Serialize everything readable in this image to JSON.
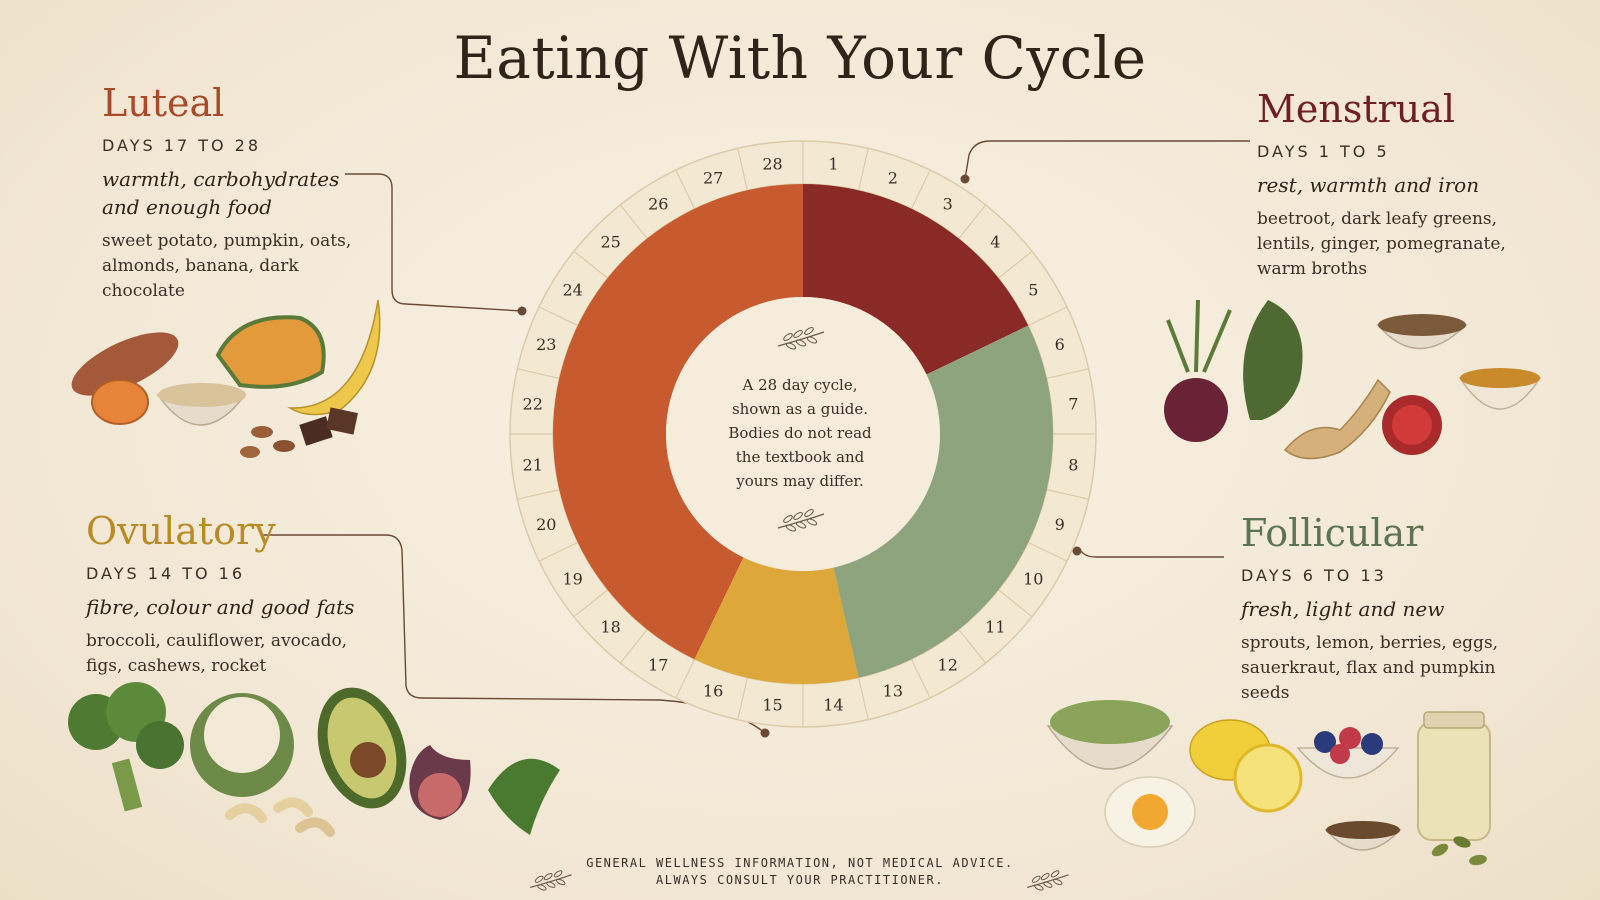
{
  "title": "Eating With Your Cycle",
  "center_note": "A 28 day cycle, shown as a guide. Bodies do not read the textbook and yours may differ.",
  "disclaimer": {
    "line1": "GENERAL WELLNESS INFORMATION, NOT MEDICAL ADVICE.",
    "line2": "ALWAYS CONSULT YOUR PRACTITIONER."
  },
  "phases": {
    "luteal": {
      "name": "Luteal",
      "days": "DAYS 17 TO 28",
      "theme": "warmth, carbohydrates and enough food",
      "foods": "sweet potato, pumpkin, oats, almonds, banana, dark chocolate",
      "start_day": 17,
      "end_day": 28,
      "color": "#c75a2e",
      "food_icons": [
        "sweet-potato",
        "pumpkin",
        "oats-bowl",
        "almonds",
        "banana",
        "dark-chocolate"
      ]
    },
    "menstrual": {
      "name": "Menstrual",
      "days": "DAYS 1 TO 5",
      "theme": "rest, warmth and iron",
      "foods": "beetroot, dark leafy greens, lentils, ginger, pomegranate, warm broths",
      "start_day": 1,
      "end_day": 5,
      "color": "#8a2a26",
      "food_icons": [
        "beetroot",
        "kale",
        "lentils-bowl",
        "ginger",
        "pomegranate",
        "broth-cup"
      ]
    },
    "ovulatory": {
      "name": "Ovulatory",
      "days": "DAYS 14 TO 16",
      "theme": "fibre, colour and good fats",
      "foods": "broccoli, cauliflower, avocado, figs, cashews, rocket",
      "start_day": 14,
      "end_day": 16,
      "color": "#dea73a",
      "food_icons": [
        "broccoli",
        "cauliflower",
        "avocado",
        "fig",
        "cashews",
        "rocket"
      ]
    },
    "follicular": {
      "name": "Follicular",
      "days": "DAYS 6 TO 13",
      "theme": "fresh, light and new",
      "foods": "sprouts, lemon, berries, eggs, sauerkraut, flax and pumpkin seeds",
      "start_day": 6,
      "end_day": 13,
      "color": "#8da47f",
      "food_icons": [
        "sprouts-bowl",
        "lemon",
        "berries-bowl",
        "egg",
        "sauerkraut-jar",
        "flax-seeds",
        "pumpkin-seeds"
      ]
    }
  },
  "cycle": {
    "total_days": 28,
    "day_labels": [
      "1",
      "2",
      "3",
      "4",
      "5",
      "6",
      "7",
      "8",
      "9",
      "10",
      "11",
      "12",
      "13",
      "14",
      "15",
      "16",
      "17",
      "18",
      "19",
      "20",
      "21",
      "22",
      "23",
      "24",
      "25",
      "26",
      "27",
      "28"
    ]
  }
}
